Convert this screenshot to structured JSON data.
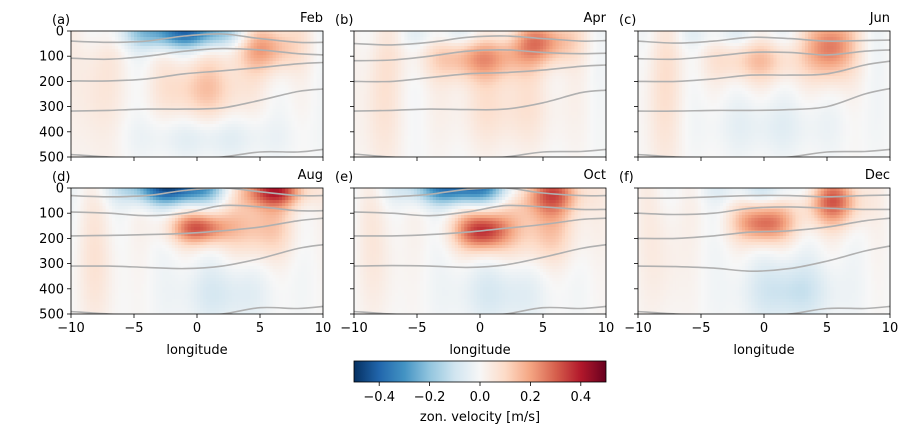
{
  "chart_data": {
    "type": "heatmap",
    "colorbar": {
      "label": "zon. velocity [m/s]",
      "ticks": [
        -0.4,
        -0.2,
        0.0,
        0.2,
        0.4
      ],
      "tick_labels": [
        "−0.4",
        "−0.2",
        "0.0",
        "0.2",
        "0.4"
      ],
      "range": [
        -0.5,
        0.5
      ],
      "colormap": "RdBu_r"
    },
    "x_axis": {
      "label": "longitude",
      "range": [
        -10,
        10
      ],
      "ticks": [
        -10,
        -5,
        0,
        5,
        10
      ],
      "tick_labels": [
        "−10",
        "−5",
        "0",
        "5",
        "10"
      ]
    },
    "y_axis": {
      "range": [
        0,
        500
      ],
      "inverted": true,
      "ticks": [
        0,
        100,
        200,
        300,
        400,
        500
      ],
      "tick_labels": [
        "0",
        "100",
        "200",
        "300",
        "400",
        "500"
      ]
    },
    "contour_color": "#b0b0b0",
    "panels": [
      {
        "letter": "(a)",
        "month": "Feb",
        "features": [
          {
            "x": -1.0,
            "y": 5,
            "sx": 3.0,
            "sy": 45,
            "amp": -0.38
          },
          {
            "x": 5.5,
            "y": 60,
            "sx": 1.8,
            "sy": 70,
            "amp": 0.22
          },
          {
            "x": 0.5,
            "y": 230,
            "sx": 2.5,
            "sy": 90,
            "amp": 0.14
          },
          {
            "x": -8.0,
            "y": 200,
            "sx": 1.2,
            "sy": 250,
            "amp": 0.07
          },
          {
            "x": 1.0,
            "y": 420,
            "sx": 4.0,
            "sy": 60,
            "amp": -0.06
          }
        ],
        "contours": [
          {
            "x": [
              -10,
              -7,
              -4,
              -1,
              2,
              5,
              8,
              10
            ],
            "y": [
              40,
              45,
              40,
              20,
              12,
              30,
              45,
              45
            ]
          },
          {
            "x": [
              -10,
              -7,
              -4,
              -1,
              2,
              5,
              8,
              10
            ],
            "y": [
              108,
              112,
              100,
              80,
              70,
              75,
              90,
              95
            ]
          },
          {
            "x": [
              -10,
              -7,
              -4,
              -1,
              2,
              5,
              8,
              10
            ],
            "y": [
              198,
              198,
              190,
              170,
              158,
              145,
              130,
              125
            ]
          },
          {
            "x": [
              -10,
              -7,
              -4,
              -1,
              2,
              5,
              8,
              10
            ],
            "y": [
              318,
              315,
              310,
              310,
              305,
              275,
              240,
              230
            ]
          },
          {
            "x": [
              -10,
              -7,
              -4,
              -1,
              2,
              5,
              8,
              10
            ],
            "y": [
              490,
              500,
              505,
              505,
              500,
              480,
              480,
              470
            ]
          }
        ]
      },
      {
        "letter": "(b)",
        "month": "Apr",
        "features": [
          {
            "x": 0.0,
            "y": 110,
            "sx": 2.8,
            "sy": 60,
            "amp": 0.2
          },
          {
            "x": 5.0,
            "y": 40,
            "sx": 1.8,
            "sy": 60,
            "amp": 0.24
          },
          {
            "x": -8.0,
            "y": 250,
            "sx": 1.2,
            "sy": 250,
            "amp": 0.07
          },
          {
            "x": 2.0,
            "y": 300,
            "sx": 3.0,
            "sy": 120,
            "amp": 0.08
          },
          {
            "x": -2.0,
            "y": 20,
            "sx": 3.0,
            "sy": 30,
            "amp": -0.06
          }
        ],
        "contours": [
          {
            "x": [
              -10,
              -7,
              -4,
              -1,
              2,
              5,
              8,
              10
            ],
            "y": [
              50,
              55,
              45,
              25,
              20,
              30,
              40,
              38
            ]
          },
          {
            "x": [
              -10,
              -7,
              -4,
              -1,
              2,
              5,
              8,
              10
            ],
            "y": [
              118,
              115,
              100,
              80,
              75,
              85,
              90,
              88
            ]
          },
          {
            "x": [
              -10,
              -7,
              -4,
              -1,
              2,
              5,
              8,
              10
            ],
            "y": [
              200,
              200,
              185,
              170,
              165,
              155,
              140,
              135
            ]
          },
          {
            "x": [
              -10,
              -7,
              -4,
              -1,
              2,
              5,
              8,
              10
            ],
            "y": [
              318,
              315,
              310,
              312,
              310,
              285,
              245,
              235
            ]
          },
          {
            "x": [
              -10,
              -7,
              -4,
              -1,
              2,
              5,
              8,
              10
            ],
            "y": [
              488,
              500,
              505,
              505,
              500,
              480,
              478,
              470
            ]
          }
        ]
      },
      {
        "letter": "(c)",
        "month": "Jun",
        "features": [
          {
            "x": 5.3,
            "y": 60,
            "sx": 1.3,
            "sy": 90,
            "amp": 0.28
          },
          {
            "x": -0.5,
            "y": 120,
            "sx": 2.5,
            "sy": 60,
            "amp": 0.14
          },
          {
            "x": -8.0,
            "y": 250,
            "sx": 1.2,
            "sy": 250,
            "amp": 0.07
          },
          {
            "x": -3.0,
            "y": 20,
            "sx": 3.0,
            "sy": 30,
            "amp": -0.05
          },
          {
            "x": 0.5,
            "y": 380,
            "sx": 3.5,
            "sy": 80,
            "amp": -0.05
          }
        ],
        "contours": [
          {
            "x": [
              -10,
              -7,
              -4,
              -1,
              2,
              5,
              8,
              10
            ],
            "y": [
              40,
              48,
              40,
              25,
              30,
              40,
              38,
              36
            ]
          },
          {
            "x": [
              -10,
              -7,
              -4,
              -1,
              2,
              5,
              8,
              10
            ],
            "y": [
              110,
              112,
              100,
              85,
              85,
              95,
              80,
              75
            ]
          },
          {
            "x": [
              -10,
              -7,
              -4,
              -1,
              2,
              5,
              8,
              10
            ],
            "y": [
              200,
              200,
              190,
              175,
              175,
              170,
              135,
              120
            ]
          },
          {
            "x": [
              -10,
              -7,
              -4,
              -1,
              2,
              5,
              8,
              10
            ],
            "y": [
              318,
              318,
              315,
              315,
              312,
              300,
              250,
              228
            ]
          },
          {
            "x": [
              -10,
              -7,
              -4,
              -1,
              2,
              5,
              8,
              10
            ],
            "y": [
              490,
              500,
              505,
              505,
              500,
              480,
              478,
              470
            ]
          }
        ]
      },
      {
        "letter": "(d)",
        "month": "Aug",
        "features": [
          {
            "x": -1.8,
            "y": 0,
            "sx": 2.6,
            "sy": 45,
            "amp": -0.45
          },
          {
            "x": 6.0,
            "y": 10,
            "sx": 1.8,
            "sy": 45,
            "amp": 0.36
          },
          {
            "x": 0.2,
            "y": 160,
            "sx": 1.6,
            "sy": 45,
            "amp": 0.32
          },
          {
            "x": 5.0,
            "y": 150,
            "sx": 1.8,
            "sy": 90,
            "amp": 0.16
          },
          {
            "x": 2.0,
            "y": 420,
            "sx": 2.5,
            "sy": 90,
            "amp": -0.08
          },
          {
            "x": -8.0,
            "y": 300,
            "sx": 1.2,
            "sy": 200,
            "amp": 0.06
          }
        ],
        "contours": [
          {
            "x": [
              -10,
              -7,
              -4,
              -1,
              2,
              5,
              8,
              10
            ],
            "y": [
              30,
              35,
              30,
              10,
              0,
              15,
              30,
              30
            ]
          },
          {
            "x": [
              -10,
              -7,
              -4,
              -1,
              2,
              5,
              8,
              10
            ],
            "y": [
              95,
              100,
              110,
              100,
              70,
              75,
              90,
              90
            ]
          },
          {
            "x": [
              -10,
              -7,
              -4,
              -1,
              2,
              5,
              8,
              10
            ],
            "y": [
              190,
              188,
              185,
              180,
              170,
              155,
              130,
              120
            ]
          },
          {
            "x": [
              -10,
              -7,
              -4,
              -1,
              2,
              5,
              8,
              10
            ],
            "y": [
              310,
              310,
              315,
              320,
              310,
              280,
              240,
              225
            ]
          },
          {
            "x": [
              -10,
              -7,
              -4,
              -1,
              2,
              5,
              8,
              10
            ],
            "y": [
              490,
              500,
              505,
              505,
              500,
              475,
              478,
              470
            ]
          }
        ]
      },
      {
        "letter": "(e)",
        "month": "Oct",
        "features": [
          {
            "x": -1.5,
            "y": 0,
            "sx": 2.8,
            "sy": 45,
            "amp": -0.4
          },
          {
            "x": 5.5,
            "y": 20,
            "sx": 1.8,
            "sy": 60,
            "amp": 0.3
          },
          {
            "x": 0.2,
            "y": 170,
            "sx": 1.5,
            "sy": 55,
            "amp": 0.38
          },
          {
            "x": 5.0,
            "y": 170,
            "sx": 2.0,
            "sy": 90,
            "amp": 0.14
          },
          {
            "x": 1.5,
            "y": 420,
            "sx": 2.5,
            "sy": 90,
            "amp": -0.08
          },
          {
            "x": -8.0,
            "y": 250,
            "sx": 1.2,
            "sy": 200,
            "amp": 0.05
          }
        ],
        "contours": [
          {
            "x": [
              -10,
              -7,
              -4,
              -1,
              2,
              5,
              8,
              10
            ],
            "y": [
              40,
              35,
              25,
              5,
              0,
              20,
              30,
              30
            ]
          },
          {
            "x": [
              -10,
              -7,
              -4,
              -1,
              2,
              5,
              8,
              10
            ],
            "y": [
              95,
              100,
              110,
              95,
              70,
              75,
              85,
              85
            ]
          },
          {
            "x": [
              -10,
              -7,
              -4,
              -1,
              2,
              5,
              8,
              10
            ],
            "y": [
              190,
              190,
              185,
              175,
              160,
              145,
              125,
              120
            ]
          },
          {
            "x": [
              -10,
              -7,
              -4,
              -1,
              2,
              5,
              8,
              10
            ],
            "y": [
              310,
              308,
              310,
              315,
              305,
              275,
              240,
              225
            ]
          },
          {
            "x": [
              -10,
              -7,
              -4,
              -1,
              2,
              5,
              8,
              10
            ],
            "y": [
              490,
              500,
              505,
              505,
              500,
              475,
              478,
              470
            ]
          }
        ]
      },
      {
        "letter": "(f)",
        "month": "Dec",
        "features": [
          {
            "x": 5.5,
            "y": 50,
            "sx": 1.5,
            "sy": 70,
            "amp": 0.3
          },
          {
            "x": 0.0,
            "y": 140,
            "sx": 1.6,
            "sy": 55,
            "amp": 0.3
          },
          {
            "x": 0.0,
            "y": 10,
            "sx": 3.0,
            "sy": 35,
            "amp": -0.08
          },
          {
            "x": 2.0,
            "y": 410,
            "sx": 2.5,
            "sy": 90,
            "amp": -0.12
          },
          {
            "x": -8.0,
            "y": 250,
            "sx": 1.2,
            "sy": 200,
            "amp": 0.05
          }
        ],
        "contours": [
          {
            "x": [
              -10,
              -7,
              -4,
              -1,
              2,
              5,
              8,
              10
            ],
            "y": [
              40,
              40,
              35,
              30,
              30,
              35,
              30,
              28
            ]
          },
          {
            "x": [
              -10,
              -7,
              -4,
              -1,
              2,
              5,
              8,
              10
            ],
            "y": [
              100,
              105,
              100,
              80,
              75,
              80,
              85,
              85
            ]
          },
          {
            "x": [
              -10,
              -7,
              -4,
              -1,
              2,
              5,
              8,
              10
            ],
            "y": [
              200,
              200,
              190,
              175,
              170,
              155,
              130,
              120
            ]
          },
          {
            "x": [
              -10,
              -7,
              -4,
              -1,
              2,
              5,
              8,
              10
            ],
            "y": [
              310,
              312,
              318,
              330,
              320,
              290,
              250,
              230
            ]
          },
          {
            "x": [
              -10,
              -7,
              -4,
              -1,
              2,
              5,
              8,
              10
            ],
            "y": [
              490,
              500,
              505,
              505,
              500,
              478,
              478,
              470
            ]
          }
        ]
      }
    ]
  }
}
